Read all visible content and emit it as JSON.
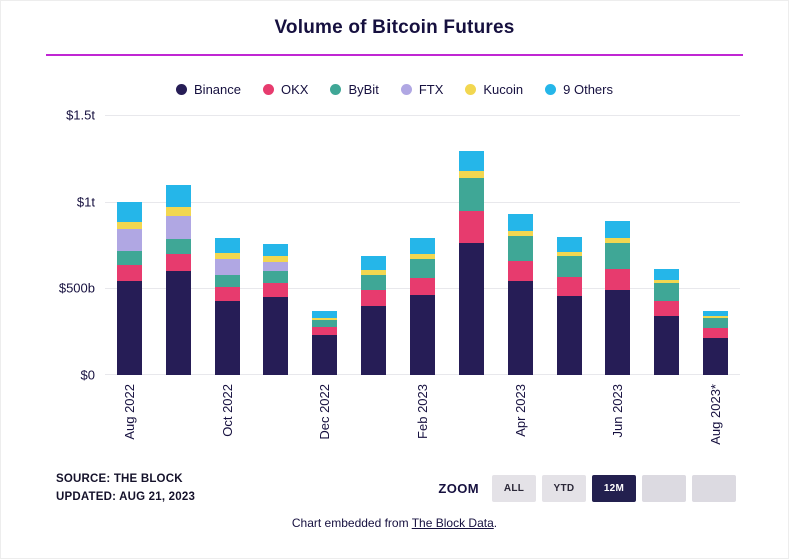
{
  "header": {
    "title": "Volume of Bitcoin Futures"
  },
  "chart_data": {
    "type": "bar",
    "stacked": true,
    "title": "Volume of Bitcoin Futures",
    "unit": "USD billions",
    "ylim": [
      0,
      1500
    ],
    "grid": true,
    "legend_position": "top",
    "categories": [
      "Aug 2022",
      "Sep 2022",
      "Oct 2022",
      "Nov 2022",
      "Dec 2022",
      "Jan 2023",
      "Feb 2023",
      "Mar 2023",
      "Apr 2023",
      "May 2023",
      "Jun 2023",
      "Jul 2023",
      "Aug 2023*"
    ],
    "x_tick_labels": [
      "Aug 2022",
      "",
      "Oct 2022",
      "",
      "Dec 2022",
      "",
      "Feb 2023",
      "",
      "Apr 2023",
      "",
      "Jun 2023",
      "",
      "Aug 2023*"
    ],
    "y_ticks": [
      {
        "label": "$1.5t",
        "value": 1500
      },
      {
        "label": "$1t",
        "value": 1000
      },
      {
        "label": "$500b",
        "value": 500
      },
      {
        "label": "$0",
        "value": 0
      }
    ],
    "series": [
      {
        "name": "Binance",
        "color": "#261d56",
        "values": [
          545,
          600,
          430,
          450,
          230,
          400,
          460,
          760,
          540,
          455,
          490,
          340,
          215
        ]
      },
      {
        "name": "OKX",
        "color": "#e73b6e",
        "values": [
          90,
          100,
          80,
          80,
          45,
          90,
          100,
          185,
          120,
          110,
          120,
          90,
          55
        ]
      },
      {
        "name": "ByBit",
        "color": "#3fa796",
        "values": [
          80,
          85,
          70,
          70,
          40,
          90,
          110,
          190,
          140,
          120,
          150,
          100,
          60
        ]
      },
      {
        "name": "FTX",
        "color": "#b0a7e3",
        "values": [
          125,
          135,
          90,
          55,
          0,
          0,
          0,
          0,
          0,
          0,
          0,
          0,
          0
        ]
      },
      {
        "name": "Kucoin",
        "color": "#f2d750",
        "values": [
          45,
          50,
          35,
          30,
          15,
          25,
          30,
          40,
          30,
          25,
          30,
          20,
          12
        ]
      },
      {
        "name": "9 Others",
        "color": "#25b6e9",
        "values": [
          110,
          125,
          85,
          70,
          40,
          85,
          90,
          120,
          100,
          85,
          100,
          60,
          30
        ]
      }
    ]
  },
  "footer": {
    "source_line1": "SOURCE: THE BLOCK",
    "source_line2": "UPDATED: AUG 21, 2023",
    "zoom_label": "ZOOM",
    "zoom_buttons": [
      {
        "label": "ALL",
        "active": false
      },
      {
        "label": "YTD",
        "active": false
      },
      {
        "label": "12M",
        "active": true
      },
      {
        "label": "",
        "active": false
      },
      {
        "label": "",
        "active": false
      }
    ],
    "embed_text": "Chart embedded from ",
    "embed_link": "The Block Data",
    "embed_suffix": "."
  },
  "colors": {
    "accent_rule": "#c026d3",
    "text_primary": "#16103f",
    "zoom_active_bg": "#23204f"
  }
}
